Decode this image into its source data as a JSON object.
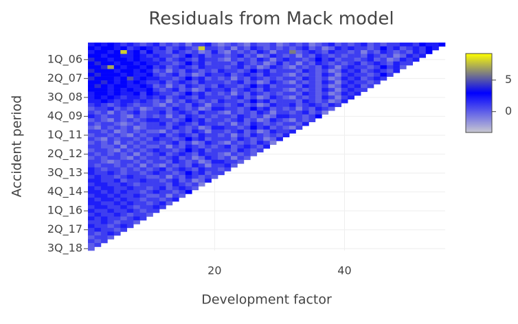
{
  "chart_data": {
    "type": "heatmap",
    "title": "Residuals from Mack model",
    "xlabel": "Development factor",
    "ylabel": "Accident period",
    "xlim": [
      0.5,
      55.5
    ],
    "xticks": [
      20,
      40
    ],
    "grid": true,
    "zlim": [
      -3.3,
      9.2
    ],
    "colorbar_ticks": [
      0,
      5
    ],
    "colorscale": [
      "#c8c8d0",
      "#0000ff",
      "#ffff00"
    ],
    "x": [
      1,
      2,
      3,
      4,
      5,
      6,
      7,
      8,
      9,
      10,
      11,
      12,
      13,
      14,
      15,
      16,
      17,
      18,
      19,
      20,
      21,
      22,
      23,
      24,
      25,
      26,
      27,
      28,
      29,
      30,
      31,
      32,
      33,
      34,
      35,
      36,
      37,
      38,
      39,
      40,
      41,
      42,
      43,
      44,
      45,
      46,
      47,
      48,
      49,
      50,
      51,
      52,
      53,
      54,
      55
    ],
    "y": [
      null,
      null,
      null,
      null,
      "1Q_06",
      null,
      null,
      null,
      null,
      "2Q_07",
      null,
      null,
      null,
      null,
      "3Q_08",
      null,
      null,
      null,
      null,
      "4Q_09",
      null,
      null,
      null,
      null,
      "1Q_11",
      null,
      null,
      null,
      null,
      "2Q_12",
      null,
      null,
      null,
      null,
      "3Q_13",
      null,
      null,
      null,
      null,
      "4Q_14",
      null,
      null,
      null,
      null,
      "1Q_16",
      null,
      null,
      null,
      null,
      "2Q_17",
      null,
      null,
      null,
      null,
      "3Q_18"
    ],
    "z": [
      [
        2,
        3,
        2,
        3,
        2,
        1,
        2,
        1,
        0,
        1,
        2,
        0,
        1,
        0,
        1,
        -1,
        1,
        1,
        2,
        0,
        -1,
        0,
        1,
        0,
        -1,
        1,
        0,
        0,
        1,
        -1,
        0,
        1,
        0,
        1,
        -1,
        0,
        1,
        2,
        0,
        1,
        0,
        1,
        2,
        0,
        1,
        0,
        1,
        1,
        2,
        2,
        1,
        3,
        2,
        2,
        3
      ],
      [
        3,
        2,
        3,
        3,
        2,
        3,
        1,
        2,
        3,
        2,
        1,
        2,
        0,
        1,
        2,
        1,
        0,
        8,
        1,
        1,
        0,
        1,
        -1,
        1,
        0,
        2,
        1,
        0,
        1,
        0,
        1,
        0,
        1,
        2,
        0,
        1,
        -1,
        0,
        2,
        1,
        2,
        1,
        1,
        0,
        1,
        3,
        1,
        2,
        0,
        1,
        2,
        1,
        3,
        2
      ],
      [
        2,
        3,
        3,
        2,
        3,
        8,
        2,
        3,
        1,
        3,
        1,
        1,
        0,
        2,
        1,
        0,
        1,
        -1,
        0,
        2,
        0,
        -1,
        1,
        0,
        1,
        0,
        2,
        1,
        -1,
        1,
        1,
        6,
        0,
        1,
        2,
        1,
        0,
        2,
        1,
        1,
        0,
        1,
        -1,
        1,
        0,
        2,
        1,
        0,
        1,
        0,
        2,
        1,
        3
      ],
      [
        3,
        3,
        2,
        3,
        3,
        2,
        2,
        3,
        2,
        1,
        2,
        1,
        1,
        0,
        1,
        3,
        1,
        2,
        0,
        1,
        1,
        0,
        1,
        2,
        0,
        1,
        -1,
        0,
        2,
        1,
        0,
        1,
        -1,
        1,
        0,
        2,
        1,
        0,
        1,
        0,
        1,
        1,
        0,
        2,
        1,
        0,
        1,
        -1,
        0,
        2,
        1,
        2
      ],
      [
        4,
        3,
        3,
        2,
        3,
        3,
        2,
        3,
        2,
        2,
        1,
        2,
        0,
        1,
        2,
        1,
        0,
        2,
        1,
        1,
        0,
        -1,
        1,
        0,
        1,
        0,
        2,
        1,
        -1,
        1,
        2,
        1,
        1,
        0,
        1,
        3,
        1,
        2,
        0,
        1,
        1,
        0,
        1,
        2,
        0,
        1,
        -1,
        0,
        2,
        1,
        2
      ],
      [
        3,
        4,
        3,
        3,
        2,
        3,
        3,
        2,
        3,
        2,
        2,
        1,
        1,
        0,
        1,
        3,
        1,
        2,
        0,
        1,
        1,
        1,
        0,
        2,
        1,
        0,
        1,
        -1,
        0,
        2,
        0,
        1,
        -1,
        1,
        0,
        2,
        1,
        0,
        1,
        0,
        1,
        2,
        0,
        1,
        2,
        1,
        0,
        2,
        1,
        1
      ],
      [
        3,
        3,
        4,
        7,
        3,
        2,
        3,
        3,
        2,
        3,
        1,
        2,
        0,
        1,
        2,
        1,
        0,
        2,
        1,
        1,
        1,
        0,
        1,
        2,
        0,
        1,
        -1,
        0,
        2,
        1,
        0,
        -1,
        1,
        0,
        1,
        0,
        2,
        1,
        -1,
        1,
        2,
        1,
        1,
        0,
        1,
        3,
        1,
        2,
        0
      ],
      [
        4,
        3,
        3,
        3,
        2,
        3,
        3,
        2,
        3,
        2,
        0,
        1,
        -1,
        1,
        0,
        2,
        1,
        0,
        1,
        0,
        2,
        1,
        1,
        0,
        1,
        3,
        1,
        2,
        0,
        1,
        1,
        1,
        0,
        2,
        1,
        0,
        1,
        -1,
        0,
        2,
        1,
        2,
        0,
        1,
        2,
        1,
        0,
        2
      ],
      [
        3,
        4,
        3,
        3,
        3,
        2,
        3,
        2,
        2,
        3,
        1,
        0,
        1,
        2,
        0,
        1,
        -1,
        0,
        2,
        1,
        1,
        2,
        0,
        1,
        2,
        1,
        0,
        2,
        1,
        1,
        0,
        -1,
        1,
        0,
        1,
        0,
        2,
        1,
        -1,
        1,
        2,
        1,
        1,
        0,
        1,
        3,
        1
      ],
      [
        4,
        3,
        3,
        3,
        2,
        3,
        5,
        2,
        3,
        2,
        2,
        1,
        1,
        0,
        1,
        3,
        1,
        2,
        0,
        1,
        0,
        1,
        -1,
        1,
        0,
        2,
        1,
        0,
        1,
        0,
        1,
        1,
        0,
        2,
        1,
        0,
        1,
        -1,
        0,
        2,
        1,
        2,
        0,
        1,
        2,
        1
      ],
      [
        3,
        3,
        4,
        3,
        2,
        3,
        2,
        3,
        2,
        1,
        1,
        2,
        0,
        1,
        2,
        1,
        0,
        2,
        1,
        1,
        1,
        0,
        1,
        2,
        0,
        1,
        -1,
        0,
        2,
        1,
        0,
        -1,
        1,
        0,
        1,
        0,
        2,
        1,
        -1,
        1,
        2,
        1,
        1,
        0,
        1
      ],
      [
        3,
        4,
        3,
        2,
        3,
        3,
        2,
        2,
        3,
        2,
        0,
        1,
        -1,
        1,
        0,
        2,
        1,
        0,
        1,
        0,
        2,
        1,
        1,
        0,
        1,
        3,
        1,
        2,
        0,
        1,
        1,
        1,
        0,
        2,
        1,
        0,
        1,
        -1,
        0,
        2,
        1,
        2,
        0,
        1
      ],
      [
        3,
        3,
        3,
        2,
        3,
        2,
        3,
        2,
        2,
        3,
        1,
        0,
        1,
        2,
        0,
        1,
        -1,
        0,
        2,
        1,
        1,
        2,
        0,
        1,
        2,
        1,
        0,
        2,
        1,
        1,
        0,
        -1,
        1,
        0,
        1,
        0,
        2,
        1,
        -1,
        1,
        2,
        1,
        1
      ],
      [
        2,
        3,
        3,
        2,
        3,
        2,
        2,
        3,
        1,
        3,
        2,
        1,
        1,
        0,
        1,
        3,
        1,
        2,
        0,
        1,
        0,
        1,
        -1,
        1,
        0,
        2,
        1,
        0,
        1,
        0,
        1,
        1,
        0,
        2,
        1,
        0,
        1,
        -1,
        0,
        2,
        1,
        2
      ],
      [
        2,
        3,
        2,
        3,
        2,
        1,
        2,
        2,
        1,
        2,
        1,
        2,
        0,
        1,
        2,
        1,
        0,
        2,
        1,
        1,
        1,
        0,
        1,
        2,
        0,
        1,
        -1,
        0,
        2,
        1,
        0,
        -1,
        1,
        0,
        1,
        0,
        2,
        1,
        -1,
        1,
        2
      ],
      [
        2,
        2,
        3,
        2,
        1,
        2,
        2,
        1,
        2,
        1,
        0,
        1,
        -1,
        1,
        0,
        2,
        1,
        0,
        1,
        0,
        2,
        1,
        1,
        0,
        1,
        3,
        1,
        2,
        0,
        1,
        1,
        1,
        0,
        2,
        1,
        0,
        1,
        -1,
        0,
        2
      ],
      [
        1,
        2,
        1,
        0,
        1,
        2,
        1,
        0,
        1,
        1,
        0,
        -1,
        1,
        0,
        1,
        0,
        2,
        1,
        -1,
        1,
        1,
        0,
        1,
        2,
        0,
        1,
        -1,
        0,
        2,
        1,
        1,
        2,
        0,
        1,
        2,
        1,
        0,
        2,
        1
      ],
      [
        0,
        1,
        1,
        2,
        0,
        1,
        0,
        1,
        -1,
        0,
        1,
        1,
        0,
        2,
        1,
        0,
        1,
        -1,
        0,
        2,
        2,
        1,
        1,
        0,
        1,
        3,
        1,
        2,
        0,
        1,
        0,
        1,
        -1,
        1,
        0,
        2,
        1,
        0
      ],
      [
        1,
        0,
        1,
        -1,
        1,
        0,
        1,
        2,
        0,
        1,
        1,
        2,
        0,
        1,
        2,
        1,
        0,
        2,
        1,
        1,
        0,
        -1,
        1,
        0,
        1,
        0,
        2,
        1,
        -1,
        1,
        1,
        0,
        1,
        2,
        0,
        1,
        -1
      ],
      [
        2,
        1,
        0,
        1,
        1,
        0,
        -1,
        1,
        0,
        1,
        0,
        1,
        -1,
        1,
        0,
        2,
        1,
        0,
        1,
        0,
        1,
        1,
        0,
        2,
        1,
        0,
        1,
        -1,
        0,
        2,
        2,
        1,
        1,
        0,
        1,
        3
      ],
      [
        0,
        1,
        0,
        -1,
        1,
        0,
        1,
        0,
        1,
        2,
        2,
        1,
        1,
        0,
        1,
        3,
        1,
        2,
        0,
        1,
        1,
        0,
        1,
        2,
        0,
        1,
        -1,
        0,
        2,
        1,
        0,
        -1,
        1,
        0,
        1
      ],
      [
        1,
        0,
        1,
        1,
        0,
        -1,
        0,
        1,
        0,
        1,
        1,
        2,
        0,
        1,
        2,
        1,
        0,
        2,
        1,
        1,
        0,
        1,
        -1,
        1,
        0,
        2,
        1,
        0,
        1,
        0,
        1,
        1,
        0,
        2
      ],
      [
        0,
        -1,
        1,
        0,
        1,
        0,
        1,
        -1,
        0,
        1,
        1,
        1,
        0,
        2,
        1,
        0,
        1,
        -1,
        0,
        2,
        2,
        1,
        1,
        0,
        1,
        3,
        1,
        2,
        0,
        1,
        0,
        -1,
        1
      ],
      [
        1,
        1,
        0,
        1,
        -1,
        0,
        1,
        0,
        1,
        0,
        0,
        -1,
        1,
        0,
        1,
        0,
        2,
        1,
        -1,
        1,
        1,
        0,
        1,
        2,
        0,
        1,
        -1,
        0,
        2,
        1,
        1,
        2
      ],
      [
        0,
        1,
        1,
        0,
        1,
        0,
        -1,
        1,
        0,
        1,
        1,
        2,
        0,
        1,
        2,
        1,
        0,
        2,
        1,
        1,
        0,
        1,
        -1,
        1,
        0,
        2,
        1,
        0,
        1,
        0,
        2
      ],
      [
        1,
        0,
        -1,
        1,
        0,
        1,
        1,
        0,
        1,
        0,
        2,
        1,
        1,
        0,
        1,
        3,
        1,
        2,
        0,
        1,
        1,
        1,
        0,
        2,
        1,
        0,
        1,
        -1,
        0,
        2
      ],
      [
        0,
        1,
        0,
        1,
        -1,
        1,
        0,
        1,
        0,
        1,
        1,
        0,
        1,
        2,
        0,
        1,
        -1,
        0,
        2,
        1,
        0,
        -1,
        1,
        0,
        1,
        0,
        2,
        1,
        -1
      ],
      [
        1,
        1,
        0,
        0,
        1,
        -1,
        1,
        0,
        1,
        0,
        0,
        1,
        -1,
        1,
        0,
        2,
        1,
        0,
        1,
        0,
        1,
        2,
        0,
        1,
        2,
        1,
        0,
        2
      ],
      [
        0,
        1,
        1,
        0,
        -1,
        1,
        0,
        1,
        0,
        1,
        2,
        1,
        1,
        0,
        1,
        3,
        1,
        2,
        0,
        1,
        1,
        1,
        0,
        2,
        1,
        0,
        1
      ],
      [
        1,
        0,
        1,
        0,
        1,
        0,
        1,
        -1,
        1,
        0,
        1,
        2,
        0,
        1,
        2,
        1,
        0,
        2,
        1,
        1,
        0,
        -1,
        1,
        0,
        1,
        0
      ],
      [
        0,
        1,
        0,
        1,
        1,
        0,
        -1,
        1,
        0,
        1,
        1,
        0,
        1,
        2,
        0,
        1,
        -1,
        0,
        2,
        1,
        0,
        1,
        -1,
        1,
        0
      ],
      [
        1,
        1,
        0,
        -1,
        0,
        1,
        1,
        0,
        1,
        0,
        1,
        1,
        0,
        2,
        1,
        0,
        1,
        -1,
        0,
        2,
        2,
        1,
        1,
        0
      ],
      [
        1,
        0,
        1,
        1,
        0,
        1,
        0,
        1,
        -1,
        1,
        0,
        -1,
        1,
        0,
        1,
        0,
        2,
        1,
        -1,
        1,
        1,
        2,
        0
      ],
      [
        2,
        1,
        0,
        1,
        1,
        0,
        1,
        0,
        1,
        0,
        1,
        2,
        0,
        1,
        2,
        1,
        0,
        2,
        1,
        1,
        0,
        1
      ],
      [
        2,
        1,
        1,
        2,
        1,
        0,
        1,
        1,
        0,
        1,
        2,
        1,
        1,
        0,
        1,
        3,
        1,
        2,
        0,
        1,
        1
      ],
      [
        1,
        2,
        1,
        1,
        0,
        1,
        2,
        1,
        1,
        0,
        0,
        1,
        -1,
        1,
        0,
        2,
        1,
        0,
        1,
        0
      ],
      [
        2,
        2,
        1,
        1,
        2,
        0,
        1,
        1,
        2,
        1,
        1,
        0,
        1,
        2,
        0,
        1,
        -1,
        0,
        2
      ],
      [
        1,
        2,
        2,
        1,
        1,
        2,
        1,
        0,
        1,
        1,
        1,
        1,
        0,
        2,
        1,
        0,
        1,
        -1
      ],
      [
        2,
        1,
        2,
        2,
        1,
        1,
        2,
        1,
        1,
        0,
        1,
        2,
        0,
        1,
        2,
        1,
        0
      ],
      [
        2,
        2,
        1,
        2,
        1,
        2,
        1,
        1,
        0,
        1,
        2,
        1,
        1,
        0,
        1,
        3
      ],
      [
        1,
        2,
        2,
        1,
        2,
        1,
        1,
        2,
        1,
        0,
        0,
        1,
        -1,
        1,
        0
      ],
      [
        2,
        1,
        2,
        2,
        1,
        2,
        1,
        1,
        0,
        1,
        1,
        0,
        1,
        2
      ],
      [
        2,
        2,
        1,
        1,
        2,
        1,
        2,
        1,
        1,
        0,
        1,
        2,
        0
      ],
      [
        1,
        2,
        2,
        1,
        1,
        2,
        1,
        0,
        1,
        1,
        2,
        1
      ],
      [
        2,
        1,
        1,
        2,
        1,
        1,
        2,
        1,
        0,
        1,
        1
      ],
      [
        1,
        2,
        1,
        1,
        2,
        1,
        0,
        1,
        1,
        0
      ],
      [
        2,
        1,
        2,
        1,
        1,
        0,
        1,
        2,
        1
      ],
      [
        1,
        1,
        2,
        1,
        0,
        1,
        1,
        0
      ],
      [
        2,
        1,
        1,
        0,
        1,
        2,
        1
      ],
      [
        1,
        2,
        1,
        1,
        0,
        1
      ],
      [
        1,
        0,
        1,
        2,
        1
      ],
      [
        0,
        1,
        1,
        0
      ],
      [
        1,
        0,
        1
      ],
      [
        0,
        1
      ],
      [
        0
      ]
    ]
  }
}
